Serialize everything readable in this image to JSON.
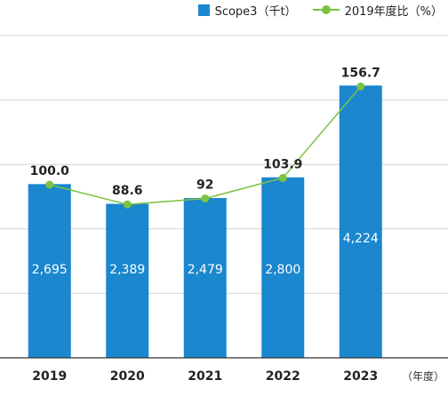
{
  "chart_data": {
    "type": "bar",
    "categories": [
      "2019",
      "2020",
      "2021",
      "2022",
      "2023"
    ],
    "x_unit_label": "（年度）",
    "series": [
      {
        "name": "Scope3（千t）",
        "kind": "bar",
        "color": "#1a87cf",
        "values": [
          2695,
          2389,
          2479,
          2800,
          4224
        ],
        "labels": [
          "2,695",
          "2,389",
          "2,479",
          "2,800",
          "4,224"
        ]
      },
      {
        "name": "2019年度比（%）",
        "kind": "line",
        "color": "#7cc242",
        "values": [
          100.0,
          88.6,
          92,
          103.9,
          156.7
        ],
        "labels": [
          "100.0",
          "88.6",
          "92",
          "103.9",
          "156.7"
        ]
      }
    ],
    "ylim": [
      0,
      5000
    ],
    "grid": true,
    "legend_position": "top-right"
  }
}
